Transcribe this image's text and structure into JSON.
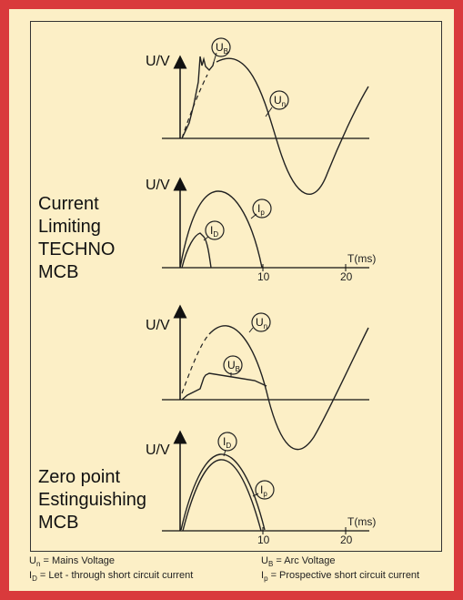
{
  "labels": {
    "yaxis": "U/V",
    "xaxis": "T(ms)",
    "tick_10": "10",
    "tick_20": "20",
    "heading_1": [
      "Current",
      "Limiting",
      "TECHNO",
      "MCB"
    ],
    "heading_2": [
      "Zero point",
      "Estinguishing",
      "MCB"
    ],
    "circle_ub": "U",
    "circle_ub_sub": "B",
    "circle_un": "U",
    "circle_un_sub": "n",
    "circle_ip": "I",
    "circle_ip_sub": "p",
    "circle_id": "I",
    "circle_id_sub": "D"
  },
  "legend": {
    "un_symbol": "U",
    "un_sub": "n",
    "un_text": " = Mains Voltage",
    "ub_symbol": "U",
    "ub_sub": "B",
    "ub_text": " = Arc Voltage",
    "id_symbol": "I",
    "id_sub": "D",
    "id_text": " = Let - through short circuit current",
    "ip_symbol": "I",
    "ip_sub": "p",
    "ip_text": " = Prospective short circuit current"
  },
  "colors": {
    "background": "#d93a3c",
    "panel": "#fcefc6",
    "line": "#222222"
  }
}
